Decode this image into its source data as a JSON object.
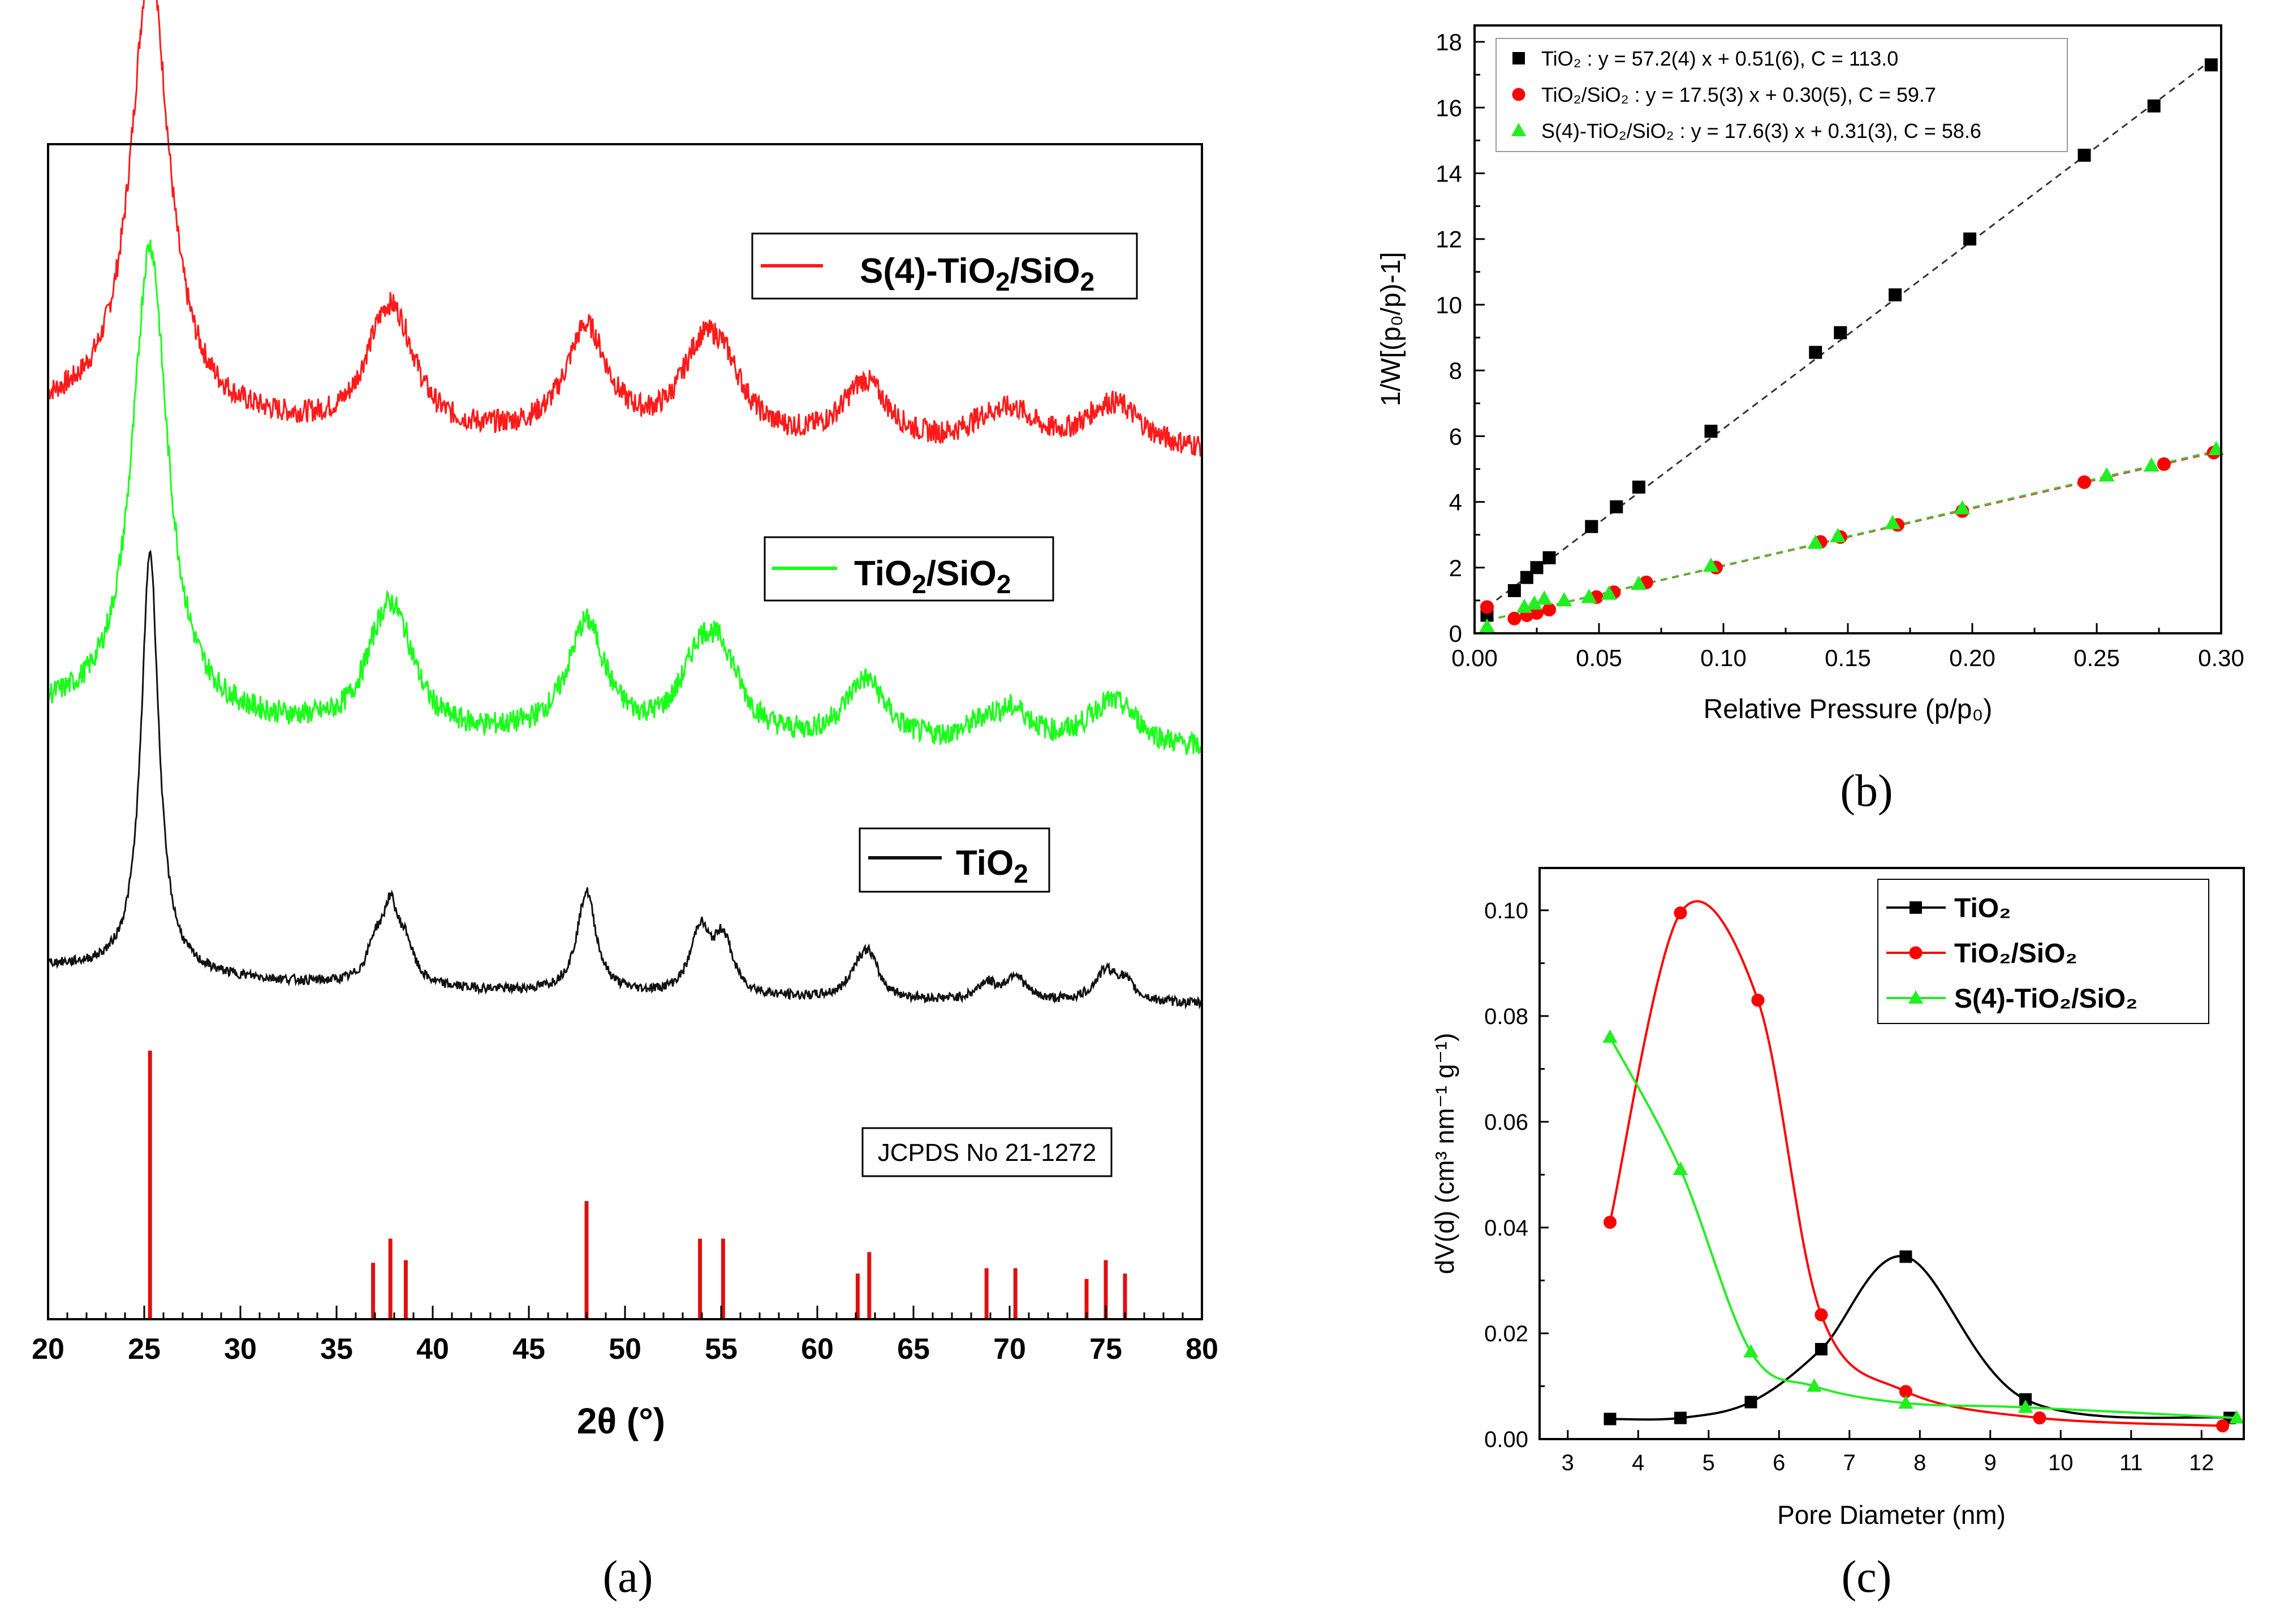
{
  "panels": {
    "a": {
      "label": "(a)"
    },
    "b": {
      "label": "(b)"
    },
    "c": {
      "label": "(c)"
    }
  },
  "chart_data": [
    {
      "id": "xrd",
      "type": "line",
      "xlabel": "2θ (°)",
      "ylabel": "",
      "xlim": [
        20,
        80
      ],
      "xticks": [
        20,
        25,
        30,
        35,
        40,
        45,
        50,
        55,
        60,
        65,
        70,
        75,
        80
      ],
      "colors": {
        "S4": "#ff1a1a",
        "TS": "#1aff1a",
        "T": "#111111",
        "ref": "#e01010"
      },
      "peaks": [
        {
          "x": 25.3,
          "h": 1.0,
          "w": 0.55
        },
        {
          "x": 37.0,
          "h": 0.08,
          "w": 0.5
        },
        {
          "x": 37.8,
          "h": 0.17,
          "w": 0.5
        },
        {
          "x": 38.6,
          "h": 0.08,
          "w": 0.5
        },
        {
          "x": 48.0,
          "h": 0.24,
          "w": 0.6
        },
        {
          "x": 53.9,
          "h": 0.15,
          "w": 0.6
        },
        {
          "x": 55.1,
          "h": 0.13,
          "w": 0.6
        },
        {
          "x": 62.1,
          "h": 0.05,
          "w": 0.6
        },
        {
          "x": 62.7,
          "h": 0.09,
          "w": 0.6
        },
        {
          "x": 68.8,
          "h": 0.04,
          "w": 0.6
        },
        {
          "x": 70.3,
          "h": 0.06,
          "w": 0.6
        },
        {
          "x": 75.0,
          "h": 0.07,
          "w": 0.7
        },
        {
          "x": 76.0,
          "h": 0.04,
          "w": 0.6
        }
      ],
      "series": [
        {
          "key": "S4",
          "name": "S(4)-TiO2/SiO2",
          "offset": 0.735,
          "scale": 0.43,
          "broad": 2.2,
          "noise": 0.01
        },
        {
          "key": "TS",
          "name": "TiO2/SiO2",
          "offset": 0.48,
          "scale": 0.45,
          "broad": 2.0,
          "noise": 0.01
        },
        {
          "key": "T",
          "name": "TiO2",
          "offset": 0.265,
          "scale": 0.4,
          "broad": 1.0,
          "noise": 0.004
        }
      ],
      "reference": {
        "name": "JCPDS No 21-1272",
        "lines": [
          {
            "x": 25.3,
            "h": 100
          },
          {
            "x": 36.9,
            "h": 21
          },
          {
            "x": 37.8,
            "h": 30
          },
          {
            "x": 38.6,
            "h": 22
          },
          {
            "x": 48.0,
            "h": 44
          },
          {
            "x": 53.9,
            "h": 30
          },
          {
            "x": 55.1,
            "h": 30
          },
          {
            "x": 62.1,
            "h": 17
          },
          {
            "x": 62.7,
            "h": 25
          },
          {
            "x": 68.8,
            "h": 19
          },
          {
            "x": 70.3,
            "h": 19
          },
          {
            "x": 74.0,
            "h": 15
          },
          {
            "x": 75.0,
            "h": 22
          },
          {
            "x": 76.0,
            "h": 17
          }
        ]
      }
    },
    {
      "id": "bet",
      "type": "scatter",
      "xlabel": "Relative Pressure (p/p₀)",
      "ylabel": "1/W[(p₀/p)-1]",
      "xlim": [
        0,
        0.3
      ],
      "ylim": [
        0,
        18.5
      ],
      "xticks": [
        0,
        0.05,
        0.1,
        0.15,
        0.2,
        0.25,
        0.3
      ],
      "yticks": [
        0,
        2,
        4,
        6,
        8,
        10,
        12,
        14,
        16,
        18
      ],
      "series": [
        {
          "name": "TiO2",
          "color": "#000000",
          "marker": "square",
          "legend": "TiO₂ : y = 57.2(4) x + 0.51(6), C = 113.0",
          "fit": {
            "slope": 57.2,
            "intercept": 0.51
          },
          "x": [
            0.005,
            0.016,
            0.021,
            0.025,
            0.03,
            0.047,
            0.057,
            0.066,
            0.095,
            0.137,
            0.147,
            0.169,
            0.199,
            0.245,
            0.273,
            0.296
          ],
          "y": [
            0.55,
            1.3,
            1.7,
            2.0,
            2.3,
            3.25,
            3.85,
            4.45,
            6.15,
            8.55,
            9.15,
            10.3,
            12.0,
            14.55,
            16.05,
            17.3
          ]
        },
        {
          "name": "TiO2/SiO2",
          "color": "#ff0000",
          "marker": "circle",
          "legend": "TiO₂/SiO₂ : y = 17.5(3) x + 0.30(5), C = 59.7",
          "fit": {
            "slope": 17.5,
            "intercept": 0.3
          },
          "x": [
            0.005,
            0.016,
            0.021,
            0.025,
            0.03,
            0.049,
            0.056,
            0.069,
            0.097,
            0.139,
            0.147,
            0.17,
            0.196,
            0.245,
            0.277,
            0.297
          ],
          "y": [
            0.8,
            0.45,
            0.55,
            0.62,
            0.72,
            1.1,
            1.25,
            1.55,
            2.0,
            2.78,
            2.93,
            3.3,
            3.72,
            4.6,
            5.15,
            5.5
          ]
        },
        {
          "name": "S(4)-TiO2/SiO2",
          "color": "#22ee22",
          "marker": "triangle",
          "legend": "S(4)-TiO₂/SiO₂ : y = 17.6(3) x + 0.31(3), C = 58.6",
          "fit": {
            "slope": 17.6,
            "intercept": 0.31
          },
          "x": [
            0.005,
            0.02,
            0.024,
            0.028,
            0.036,
            0.046,
            0.054,
            0.066,
            0.095,
            0.137,
            0.146,
            0.168,
            0.196,
            0.254,
            0.272,
            0.298
          ],
          "y": [
            0.2,
            0.8,
            0.9,
            1.05,
            1.0,
            1.1,
            1.2,
            1.5,
            2.05,
            2.75,
            2.95,
            3.35,
            3.8,
            4.8,
            5.1,
            5.6
          ]
        }
      ]
    },
    {
      "id": "bjh",
      "type": "line",
      "xlabel": "Pore Diameter (nm)",
      "ylabel": "dV(d) (cm³ nm⁻¹ g⁻¹)",
      "xlim": [
        2.6,
        12.6
      ],
      "ylim": [
        0,
        0.108
      ],
      "xticks": [
        3,
        4,
        5,
        6,
        7,
        8,
        9,
        10,
        11,
        12
      ],
      "yticks": [
        0.0,
        0.02,
        0.04,
        0.06,
        0.08,
        0.1
      ],
      "series": [
        {
          "name": "TiO₂",
          "color": "#000000",
          "marker": "square",
          "x": [
            3.6,
            4.6,
            5.6,
            6.6,
            7.8,
            9.5,
            12.4
          ],
          "y": [
            0.0038,
            0.004,
            0.007,
            0.017,
            0.0345,
            0.0075,
            0.004
          ]
        },
        {
          "name": "TiO₂/SiO₂",
          "color": "#ff0000",
          "marker": "circle",
          "x": [
            3.6,
            4.6,
            5.7,
            6.6,
            7.8,
            9.7,
            12.3
          ],
          "y": [
            0.041,
            0.0995,
            0.083,
            0.0235,
            0.009,
            0.004,
            0.0025
          ]
        },
        {
          "name": "S(4)-TiO₂/SiO₂",
          "color": "#22ee22",
          "marker": "triangle",
          "x": [
            3.6,
            4.6,
            5.6,
            6.5,
            7.8,
            9.5,
            12.5
          ],
          "y": [
            0.076,
            0.051,
            0.0165,
            0.01,
            0.0068,
            0.006,
            0.004
          ]
        }
      ]
    }
  ]
}
